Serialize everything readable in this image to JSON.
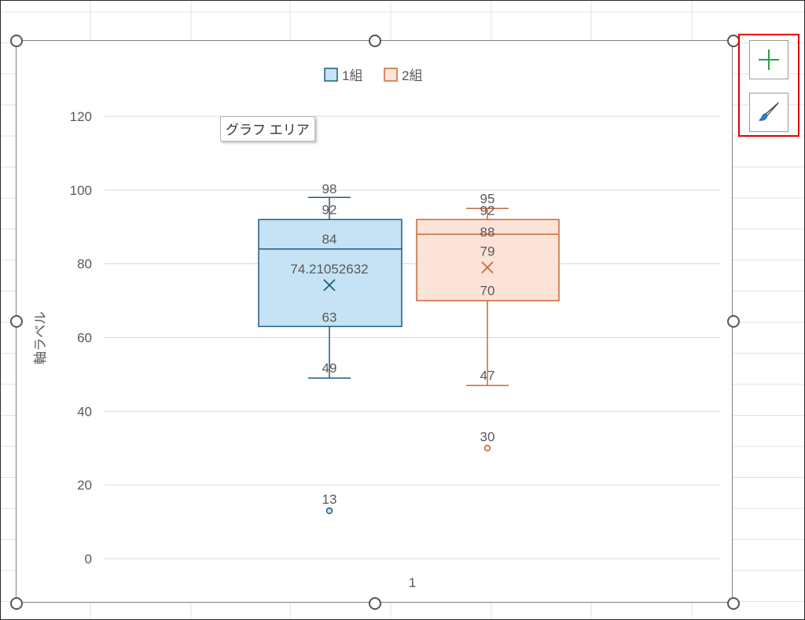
{
  "tooltip_text": "グラフ エリア",
  "side_buttons": {
    "add_element_icon": "plus-icon",
    "style_icon": "paintbrush-icon"
  },
  "colors": {
    "series1_fill": "#c5e3f4",
    "series1_stroke": "#1f5c82",
    "series2_fill": "#fbe3d7",
    "series2_stroke": "#c9683a",
    "gridline": "#d9d9d9",
    "text": "#595959",
    "highlight": "#e00000"
  },
  "chart_data": {
    "type": "boxplot",
    "ylabel": "軸ラベル",
    "categories": [
      "1"
    ],
    "ylim": [
      0,
      120
    ],
    "yticks": [
      0,
      20,
      40,
      60,
      80,
      100,
      120
    ],
    "grid": true,
    "legend_position": "top",
    "series": [
      {
        "name": "1組",
        "min": 49,
        "q1": 63,
        "median": 84,
        "q3": 92,
        "max": 98,
        "mean": 74.21052632,
        "mean_label": "74.21052632",
        "outliers": [
          13
        ]
      },
      {
        "name": "2組",
        "min": 47,
        "q1": 70,
        "median": 88,
        "q3": 92,
        "max": 95,
        "mean": 79,
        "mean_label": "79",
        "outliers": [
          30
        ]
      }
    ]
  }
}
